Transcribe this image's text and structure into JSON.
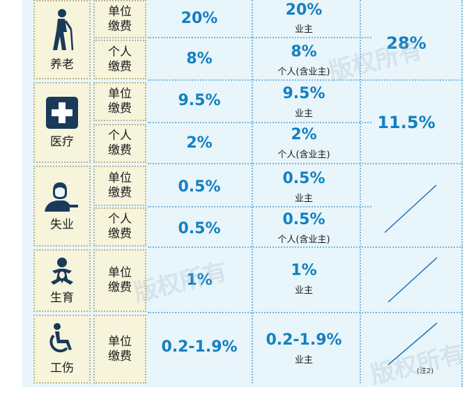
{
  "categories": [
    {
      "name": "养老",
      "icon": "elderly-person-icon"
    },
    {
      "name": "医疗",
      "icon": "medical-cross-icon"
    },
    {
      "name": "失业",
      "icon": "unemployed-person-icon"
    },
    {
      "name": "生育",
      "icon": "baby-icon"
    },
    {
      "name": "工伤",
      "icon": "wheelchair-icon"
    }
  ],
  "rows": [
    {
      "payer": "单位\n缴费",
      "rate": "20%",
      "detail_rate": "20%",
      "detail_note": "业主"
    },
    {
      "payer": "个人\n缴费",
      "rate": "8%",
      "detail_rate": "8%",
      "detail_note": "个人(含业主)"
    },
    {
      "payer": "单位\n缴费",
      "rate": "9.5%",
      "detail_rate": "9.5%",
      "detail_note": "业主"
    },
    {
      "payer": "个人\n缴费",
      "rate": "2%",
      "detail_rate": "2%",
      "detail_note": "个人(含业主)"
    },
    {
      "payer": "单位\n缴费",
      "rate": "0.5%",
      "detail_rate": "0.5%",
      "detail_note": "业主"
    },
    {
      "payer": "个人\n缴费",
      "rate": "0.5%",
      "detail_rate": "0.5%",
      "detail_note": "个人(含业主)"
    },
    {
      "payer": "单位\n缴费",
      "rate": "1%",
      "detail_rate": "1%",
      "detail_note": "业主"
    },
    {
      "payer": "单位\n缴费",
      "rate": "0.2-1.9%",
      "detail_rate": "0.2-1.9%",
      "detail_note": "业主"
    }
  ],
  "totals": {
    "pension": "28%",
    "medical": "11.5%"
  },
  "footnote": "(注2)",
  "watermark": "版权所有",
  "colors": {
    "accent": "#1380c2",
    "panel": "#e8f5fb",
    "label_bg": "#f7f4dc"
  }
}
